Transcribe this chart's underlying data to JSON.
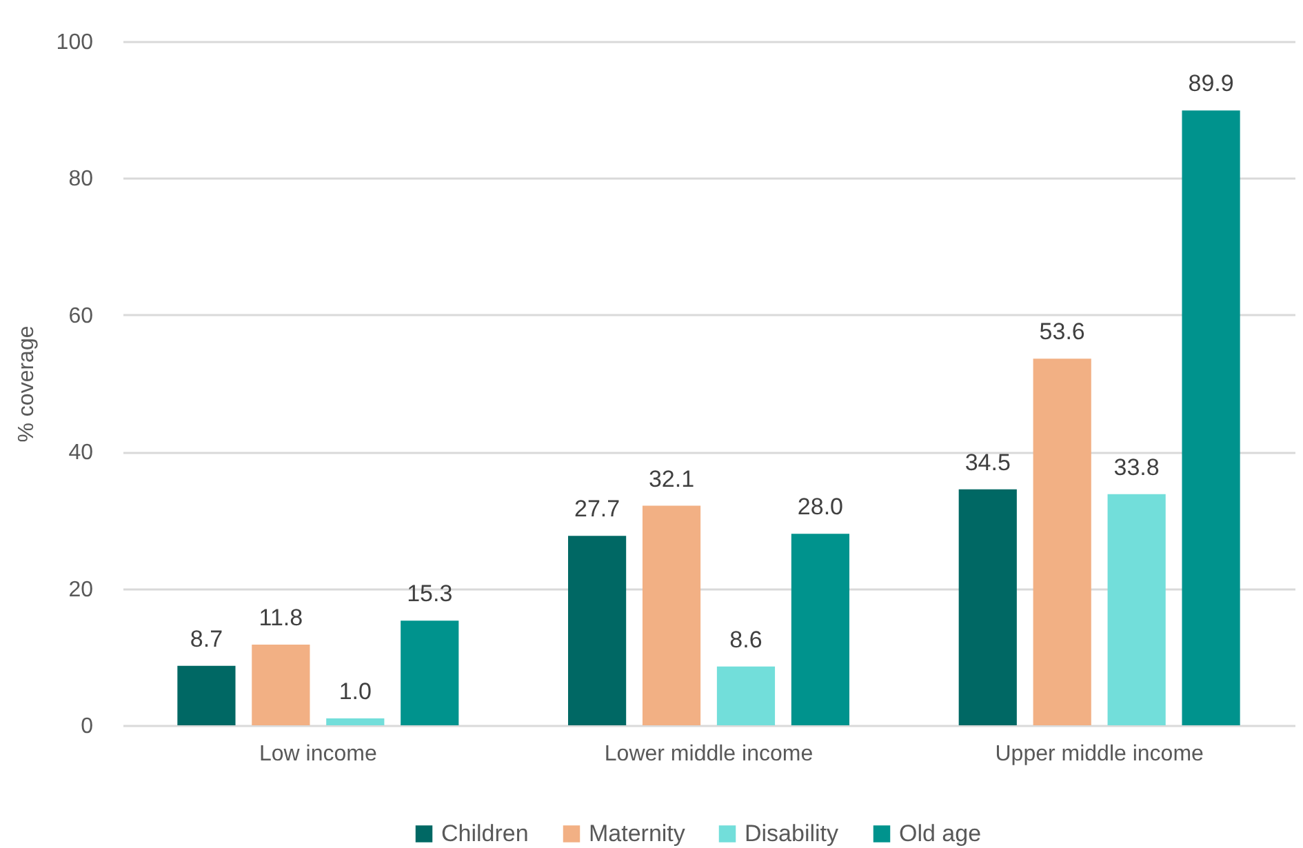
{
  "chart_data": {
    "type": "bar",
    "ylabel": "% coverage",
    "categories": [
      "Low income",
      "Lower middle income",
      "Upper middle income"
    ],
    "series": [
      {
        "name": "Children",
        "color": "#006864",
        "values": [
          8.7,
          27.7,
          34.5
        ],
        "value_labels": [
          "8.7",
          "27.7",
          "34.5"
        ]
      },
      {
        "name": "Maternity",
        "color": "#f2b084",
        "values": [
          11.8,
          32.1,
          53.6
        ],
        "value_labels": [
          "11.8",
          "32.1",
          "53.6"
        ]
      },
      {
        "name": "Disability",
        "color": "#72deda",
        "values": [
          1.0,
          8.6,
          33.8
        ],
        "value_labels": [
          "1.0",
          "8.6",
          "33.8"
        ]
      },
      {
        "name": "Old age",
        "color": "#00938d",
        "values": [
          15.3,
          28.0,
          89.9
        ],
        "value_labels": [
          "15.3",
          "28.0",
          "89.9"
        ]
      }
    ],
    "ylim": [
      0,
      100
    ],
    "yticks": [
      0,
      20,
      40,
      60,
      80,
      100
    ],
    "grid": "y",
    "legend": "bottom"
  }
}
